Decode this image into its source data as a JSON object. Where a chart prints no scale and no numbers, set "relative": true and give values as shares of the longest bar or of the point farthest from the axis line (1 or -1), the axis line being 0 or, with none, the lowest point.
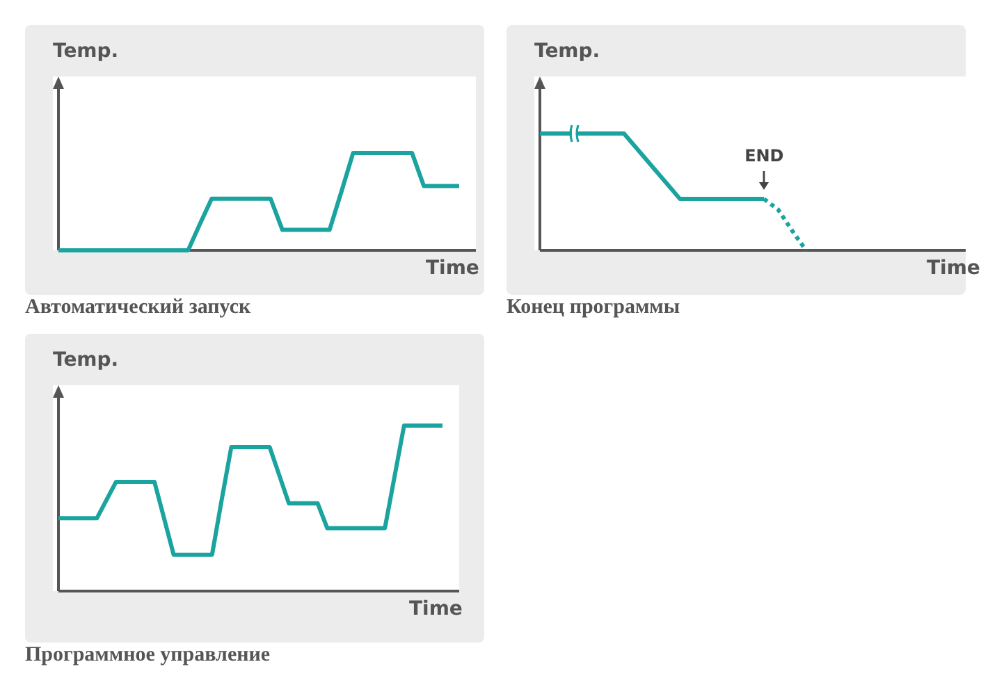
{
  "chart_data": [
    {
      "type": "line",
      "title": "Автоматический запуск",
      "ylabel": "Temp.",
      "xlabel": "Time",
      "relative": true,
      "tick_labels": false,
      "categories": [
        null,
        null,
        null,
        null,
        null,
        null,
        null,
        null,
        null,
        null,
        null,
        null,
        null,
        null,
        null,
        null,
        null,
        null,
        null,
        null,
        null,
        null,
        null,
        null,
        null,
        null,
        null,
        null,
        null,
        null,
        null,
        null,
        null,
        null,
        null
      ],
      "series": [
        {
          "color": "#1aa39f",
          "values": [
            0,
            0,
            0,
            0,
            0,
            0,
            0,
            0,
            0,
            0,
            0,
            0,
            0.27,
            0.53,
            0.53,
            0.53,
            0.53,
            0.53,
            0.53,
            0.21,
            0.21,
            0.21,
            0.21,
            0.21,
            0.6,
            1,
            1,
            1,
            1,
            1,
            1,
            0.66,
            0.66,
            0.66,
            0.66
          ]
        }
      ]
    },
    {
      "type": "line",
      "title": "Конец программы",
      "ylabel": "Temp.",
      "xlabel": "Time",
      "relative": true,
      "tick_labels": false,
      "annotations": [
        "END"
      ],
      "categories": [
        null,
        null,
        null,
        null,
        null,
        null,
        null,
        null,
        null,
        null,
        null,
        null,
        null,
        null,
        null,
        null,
        null,
        null,
        null,
        null,
        null,
        null,
        null,
        null,
        null,
        null,
        null,
        null,
        null,
        null,
        null
      ],
      "series": [
        {
          "color": "#1aa39f",
          "values": [
            1,
            1,
            1,
            1,
            1,
            1,
            1,
            0.86,
            0.72,
            0.58,
            0.44,
            0.44,
            0.44,
            0.44,
            0.44,
            0.44,
            0.44,
            null,
            null,
            null,
            null,
            null,
            null,
            null,
            null,
            null,
            null,
            null,
            null,
            null,
            null
          ]
        },
        {
          "color": "#1aa39f",
          "line_style": "dotted",
          "values": [
            null,
            null,
            null,
            null,
            null,
            null,
            null,
            null,
            null,
            null,
            null,
            null,
            null,
            null,
            null,
            null,
            0.44,
            0.35,
            0.17,
            0,
            null,
            null,
            null,
            null,
            null,
            null,
            null,
            null,
            null,
            null,
            null
          ]
        }
      ]
    },
    {
      "type": "line",
      "title": "Программное управление",
      "ylabel": "Temp.",
      "xlabel": "Time",
      "relative": true,
      "tick_labels": false,
      "categories": [
        null,
        null,
        null,
        null,
        null,
        null,
        null,
        null,
        null,
        null,
        null,
        null,
        null,
        null,
        null,
        null,
        null,
        null,
        null,
        null,
        null,
        null,
        null,
        null,
        null,
        null,
        null,
        null,
        null,
        null,
        null,
        null,
        null,
        null,
        null,
        null,
        null,
        null,
        null,
        null,
        null
      ],
      "series": [
        {
          "color": "#1aa39f",
          "values": [
            0.44,
            0.44,
            0.44,
            0.44,
            0.44,
            0.55,
            0.66,
            0.66,
            0.66,
            0.66,
            0.66,
            0.44,
            0.22,
            0.22,
            0.22,
            0.22,
            0.22,
            0.55,
            0.87,
            0.87,
            0.87,
            0.87,
            0.87,
            0.7,
            0.53,
            0.53,
            0.53,
            0.53,
            0.38,
            0.38,
            0.38,
            0.38,
            0.38,
            0.38,
            0.38,
            0.69,
            1,
            1,
            1,
            1,
            1
          ]
        }
      ]
    }
  ]
}
